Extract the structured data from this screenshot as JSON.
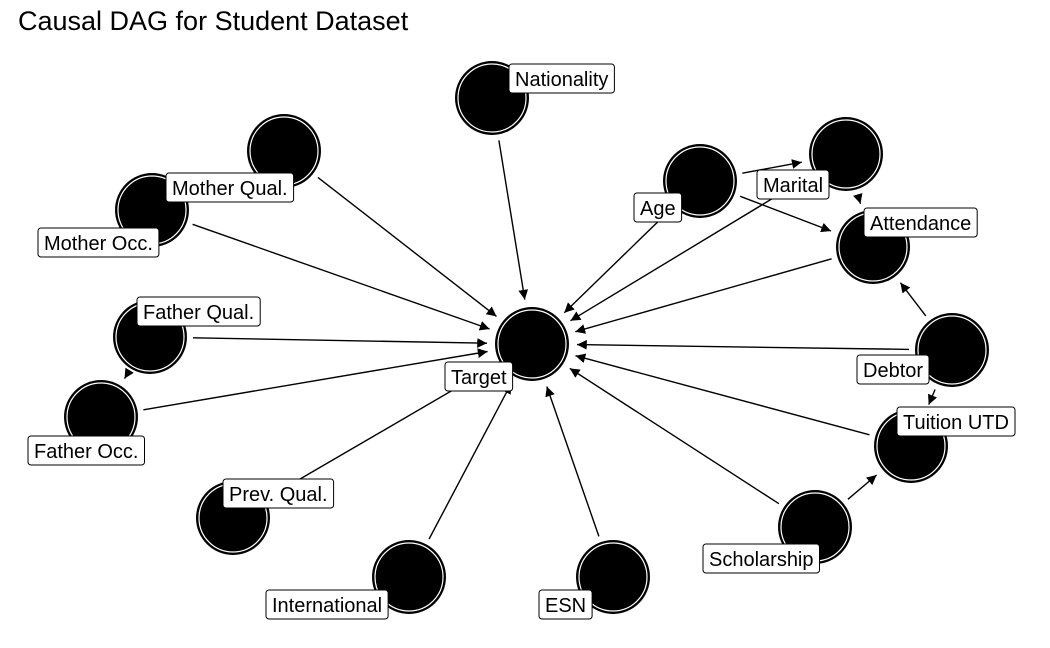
{
  "title": "Causal DAG for Student Dataset",
  "nodes": [
    {
      "id": "nationality",
      "label": "Nationality"
    },
    {
      "id": "mother_qual",
      "label": "Mother Qual."
    },
    {
      "id": "mother_occ",
      "label": "Mother Occ."
    },
    {
      "id": "age",
      "label": "Age"
    },
    {
      "id": "marital",
      "label": "Marital"
    },
    {
      "id": "attendance",
      "label": "Attendance"
    },
    {
      "id": "father_qual",
      "label": "Father Qual."
    },
    {
      "id": "father_occ",
      "label": "Father Occ."
    },
    {
      "id": "target",
      "label": "Target"
    },
    {
      "id": "debtor",
      "label": "Debtor"
    },
    {
      "id": "tuition_utd",
      "label": "Tuition UTD"
    },
    {
      "id": "prev_qual",
      "label": "Prev. Qual."
    },
    {
      "id": "international",
      "label": "International"
    },
    {
      "id": "esn",
      "label": "ESN"
    },
    {
      "id": "scholarship",
      "label": "Scholarship"
    }
  ],
  "edges": [
    {
      "from": "nationality",
      "to": "target"
    },
    {
      "from": "mother_qual",
      "to": "target"
    },
    {
      "from": "mother_occ",
      "to": "target"
    },
    {
      "from": "father_qual",
      "to": "target"
    },
    {
      "from": "father_qual",
      "to": "father_occ"
    },
    {
      "from": "father_occ",
      "to": "target"
    },
    {
      "from": "prev_qual",
      "to": "target"
    },
    {
      "from": "international",
      "to": "target"
    },
    {
      "from": "esn",
      "to": "target"
    },
    {
      "from": "scholarship",
      "to": "target"
    },
    {
      "from": "scholarship",
      "to": "tuition_utd"
    },
    {
      "from": "tuition_utd",
      "to": "target"
    },
    {
      "from": "debtor",
      "to": "target"
    },
    {
      "from": "debtor",
      "to": "tuition_utd"
    },
    {
      "from": "debtor",
      "to": "attendance"
    },
    {
      "from": "attendance",
      "to": "target"
    },
    {
      "from": "age",
      "to": "target"
    },
    {
      "from": "age",
      "to": "marital"
    },
    {
      "from": "age",
      "to": "attendance"
    },
    {
      "from": "marital",
      "to": "target"
    },
    {
      "from": "marital",
      "to": "attendance"
    }
  ]
}
